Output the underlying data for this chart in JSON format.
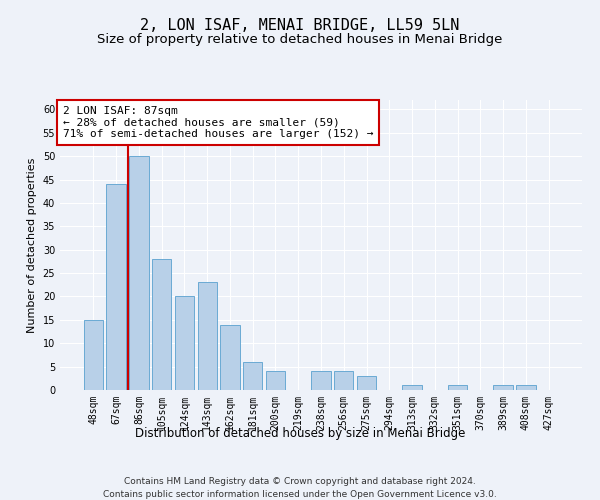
{
  "title": "2, LON ISAF, MENAI BRIDGE, LL59 5LN",
  "subtitle": "Size of property relative to detached houses in Menai Bridge",
  "xlabel": "Distribution of detached houses by size in Menai Bridge",
  "ylabel": "Number of detached properties",
  "categories": [
    "48sqm",
    "67sqm",
    "86sqm",
    "105sqm",
    "124sqm",
    "143sqm",
    "162sqm",
    "181sqm",
    "200sqm",
    "219sqm",
    "238sqm",
    "256sqm",
    "275sqm",
    "294sqm",
    "313sqm",
    "332sqm",
    "351sqm",
    "370sqm",
    "389sqm",
    "408sqm",
    "427sqm"
  ],
  "values": [
    15,
    44,
    50,
    28,
    20,
    23,
    14,
    6,
    4,
    0,
    4,
    4,
    3,
    0,
    1,
    0,
    1,
    0,
    1,
    1,
    0
  ],
  "bar_color": "#b8d0e8",
  "bar_edge_color": "#6aaad4",
  "vline_x": 1.5,
  "vline_color": "#cc0000",
  "annotation_text": "2 LON ISAF: 87sqm\n← 28% of detached houses are smaller (59)\n71% of semi-detached houses are larger (152) →",
  "annotation_box_color": "#ffffff",
  "annotation_box_edge_color": "#cc0000",
  "ylim": [
    0,
    62
  ],
  "yticks": [
    0,
    5,
    10,
    15,
    20,
    25,
    30,
    35,
    40,
    45,
    50,
    55,
    60
  ],
  "footer_line1": "Contains HM Land Registry data © Crown copyright and database right 2024.",
  "footer_line2": "Contains public sector information licensed under the Open Government Licence v3.0.",
  "background_color": "#eef2f9",
  "grid_color": "#ffffff",
  "title_fontsize": 11,
  "subtitle_fontsize": 9.5,
  "ylabel_fontsize": 8,
  "xlabel_fontsize": 8.5,
  "tick_fontsize": 7,
  "annotation_fontsize": 8,
  "footer_fontsize": 6.5
}
